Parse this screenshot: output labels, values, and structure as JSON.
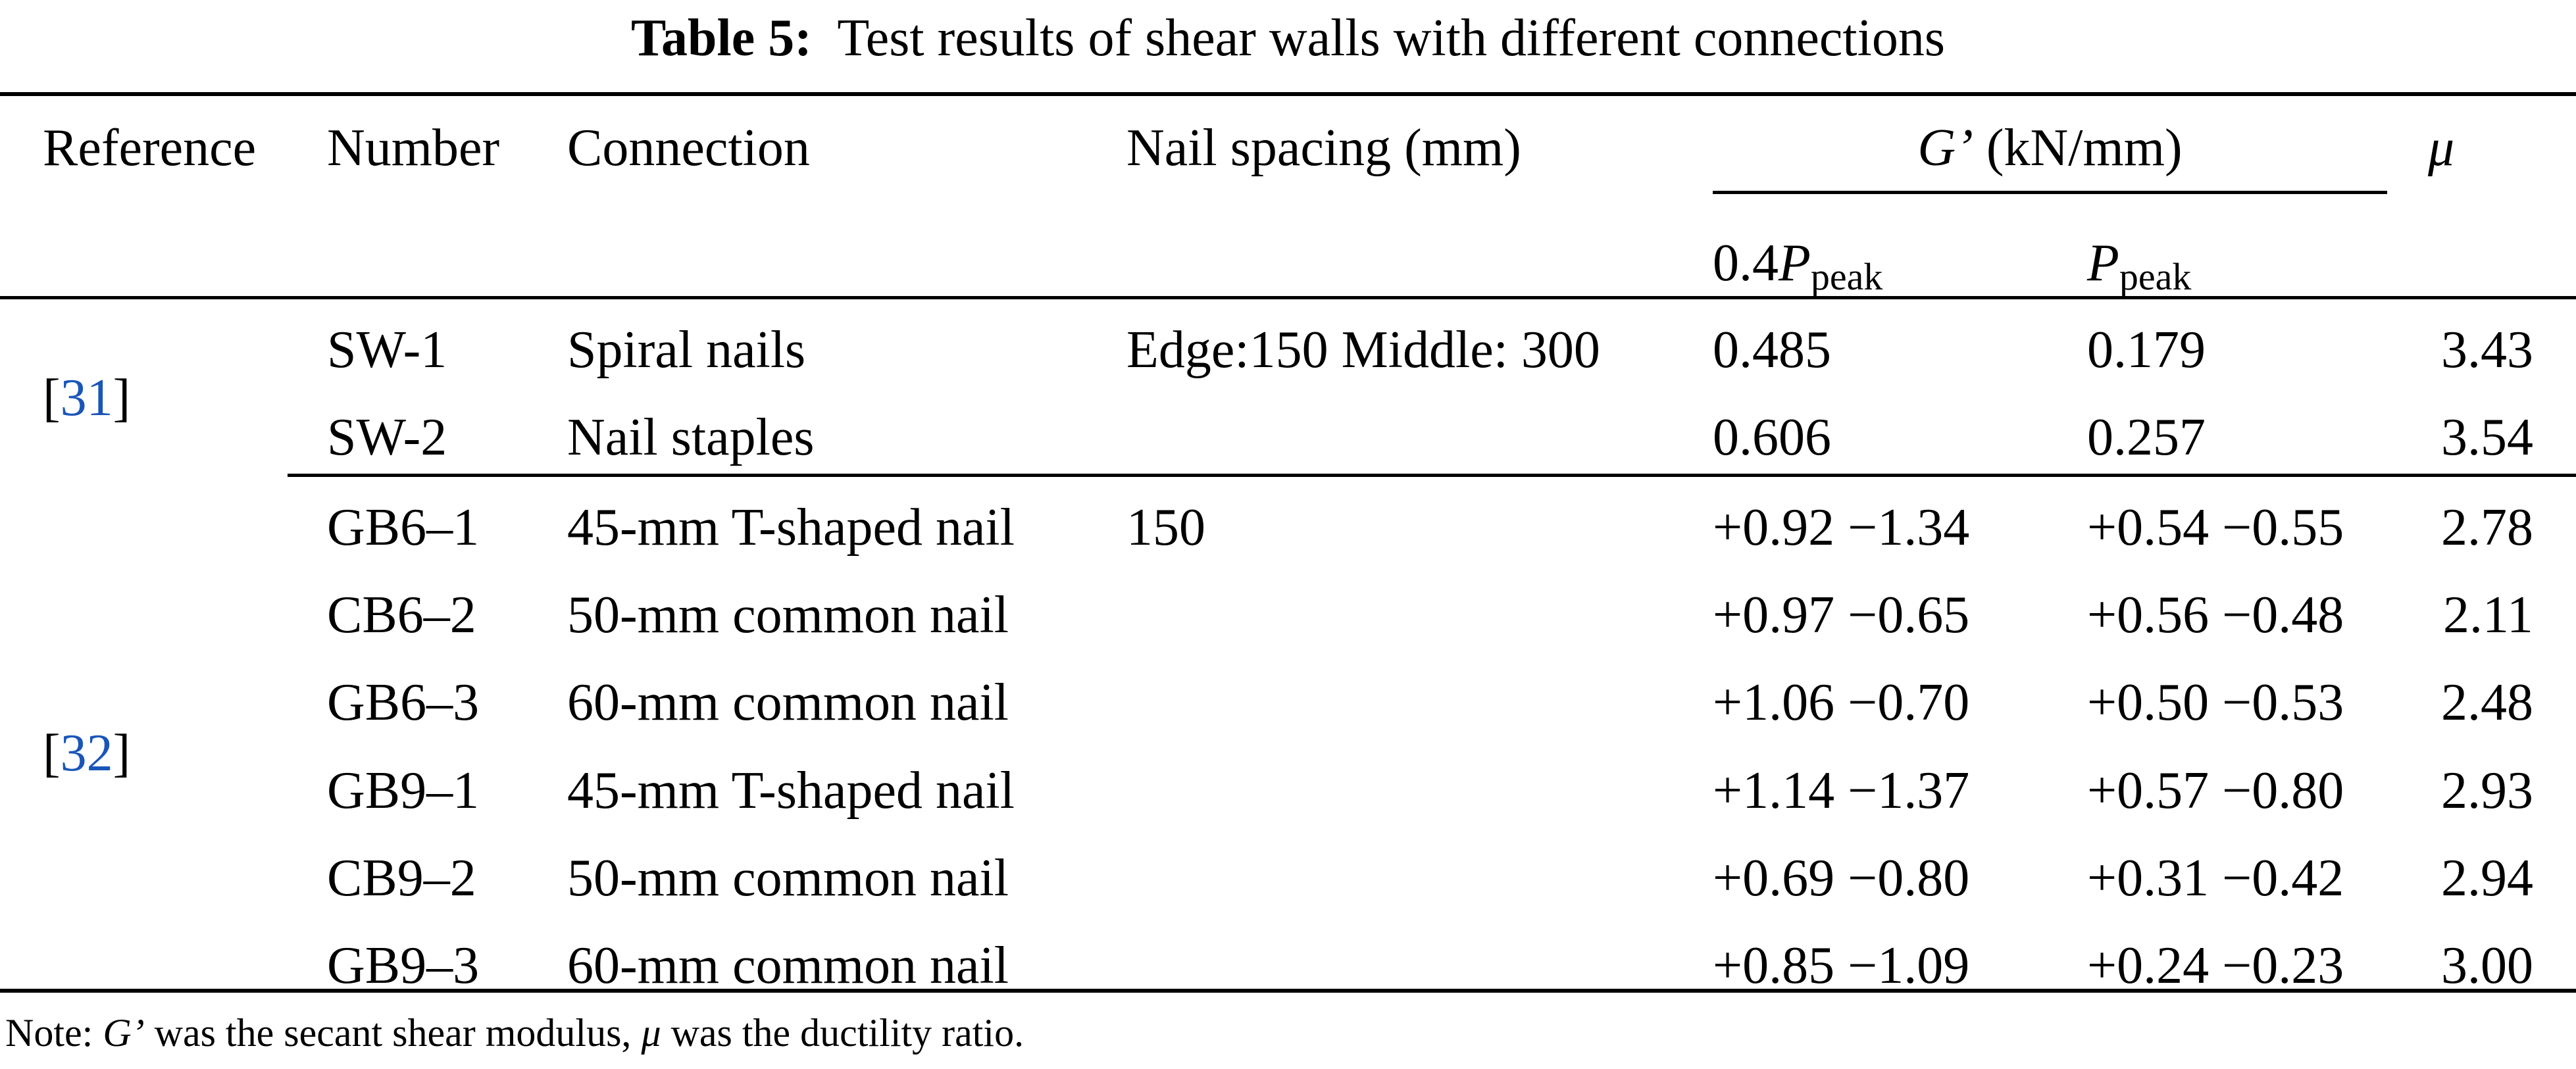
{
  "title": {
    "label": "Table 5:",
    "text": "Test results of shear walls with different connections"
  },
  "headers": {
    "reference": "Reference",
    "number": "Number",
    "connection": "Connection",
    "nail_spacing": "Nail spacing (mm)",
    "g_symbol": "G’",
    "g_unit": "(kN/mm)",
    "mu": "μ",
    "sub1_prefix": "0.4",
    "sub1_symbol": "P",
    "sub1_sub": "peak",
    "sub2_symbol": "P",
    "sub2_sub": "peak"
  },
  "groups": [
    {
      "reference": "31"
    },
    {
      "reference": "32"
    }
  ],
  "rows": [
    {
      "number": "SW-1",
      "connection": "Spiral nails",
      "spacing": "Edge:150 Middle: 300",
      "g04": "0.485",
      "gpeak": "0.179",
      "mu": "3.43"
    },
    {
      "number": "SW-2",
      "connection": "Nail staples",
      "spacing": "",
      "g04": "0.606",
      "gpeak": "0.257",
      "mu": "3.54"
    },
    {
      "number": "GB6–1",
      "connection": "45-mm T-shaped nail",
      "spacing": "150",
      "g04": "+0.92 −1.34",
      "gpeak": "+0.54 −0.55",
      "mu": "2.78"
    },
    {
      "number": "CB6–2",
      "connection": "50-mm common nail",
      "spacing": "",
      "g04": "+0.97 −0.65",
      "gpeak": "+0.56 −0.48",
      "mu": "2.11"
    },
    {
      "number": "GB6–3",
      "connection": "60-mm common nail",
      "spacing": "",
      "g04": "+1.06 −0.70",
      "gpeak": "+0.50 −0.53",
      "mu": "2.48"
    },
    {
      "number": "GB9–1",
      "connection": "45-mm T-shaped nail",
      "spacing": "",
      "g04": "+1.14 −1.37",
      "gpeak": "+0.57 −0.80",
      "mu": "2.93"
    },
    {
      "number": "CB9–2",
      "connection": "50-mm common nail",
      "spacing": "",
      "g04": "+0.69 −0.80",
      "gpeak": "+0.31 −0.42",
      "mu": "2.94"
    },
    {
      "number": "GB9–3",
      "connection": "60-mm common nail",
      "spacing": "",
      "g04": "+0.85 −1.09",
      "gpeak": "+0.24 −0.23",
      "mu": "3.00"
    }
  ],
  "note": {
    "prefix": "Note: ",
    "g_symbol": "G’",
    "middle": " was the secant shear modulus, ",
    "mu": "μ",
    "suffix": " was the ductility ratio."
  },
  "colors": {
    "reference_link": "#1a56b8"
  }
}
